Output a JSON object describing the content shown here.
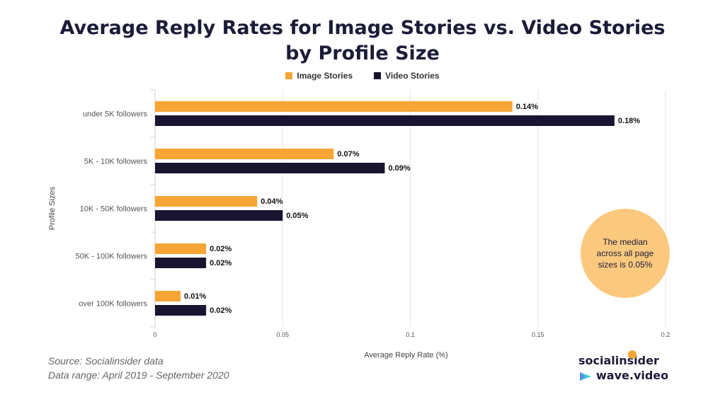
{
  "title_line1": "Average Reply Rates for Image Stories vs. Video Stories",
  "title_line2": "by Profile Size",
  "source_line1": "Source: Socialinsider data",
  "source_line2": "Data range: April 2019 - September 2020",
  "annotation": "The median across all page sizes is 0.05%",
  "logo_socialinsider": "socialinsider",
  "logo_wavevideo": "wave.video",
  "chart_data": {
    "type": "bar",
    "orientation": "horizontal",
    "title": "Average Reply Rates for Image Stories vs. Video Stories by Profile Size",
    "xlabel": "Average Reply Rate (%)",
    "ylabel": "Profile Sizes",
    "xlim": [
      0,
      0.2
    ],
    "xticks": [
      "0",
      "0.05",
      "0.1",
      "0.15",
      "0.2"
    ],
    "xtick_values": [
      0,
      0.05,
      0.1,
      0.15,
      0.2
    ],
    "grid": true,
    "legend_position": "top-center",
    "categories": [
      "under 5K followers",
      "5K - 10K followers",
      "10K - 50K followers",
      "50K - 100K followers",
      "over 100K followers"
    ],
    "series": [
      {
        "name": "Image Stories",
        "color": "#f7a534",
        "values": [
          0.14,
          0.07,
          0.04,
          0.02,
          0.01
        ],
        "labels": [
          "0.14%",
          "0.07%",
          "0.04%",
          "0.02%",
          "0.01%"
        ]
      },
      {
        "name": "Video Stories",
        "color": "#17152f",
        "values": [
          0.18,
          0.09,
          0.05,
          0.02,
          0.02
        ],
        "labels": [
          "0.18%",
          "0.09%",
          "0.05%",
          "0.02%",
          "0.02%"
        ]
      }
    ]
  }
}
